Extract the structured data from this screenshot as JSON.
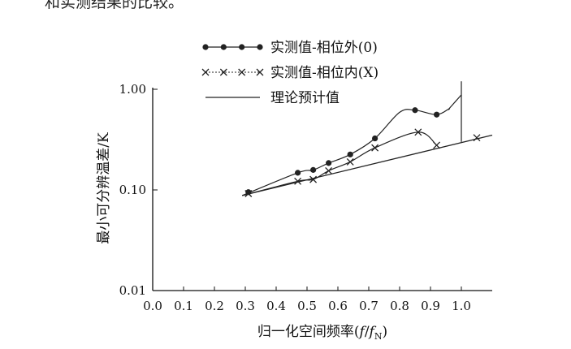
{
  "page": {
    "top_text": "和实测结果的比较。"
  },
  "chart_data": {
    "type": "line",
    "xlabel": "归一化空间频率(f/fN)",
    "xlabel_parts": {
      "main": "归一化空间频率(",
      "f1": "f",
      "slash": "/",
      "f2": "f",
      "sub": "N",
      "close": ")"
    },
    "ylabel": "最小可分辨温差/K",
    "x_scale": "linear",
    "y_scale": "log",
    "xlim": [
      0.0,
      1.1
    ],
    "ylim": [
      0.01,
      1.0
    ],
    "x_ticks": [
      "0.0",
      "0.1",
      "0.2",
      "0.3",
      "0.4",
      "0.5",
      "0.6",
      "0.7",
      "0.8",
      "0.9",
      "1.0"
    ],
    "y_ticks": [
      "0.01",
      "0.10",
      "1.00"
    ],
    "grid": false,
    "legend_position": "top",
    "series": [
      {
        "name": "实测值-相位外(0)",
        "marker": "dot",
        "points": [
          {
            "x": 0.31,
            "y": 0.095
          },
          {
            "x": 0.47,
            "y": 0.148
          },
          {
            "x": 0.52,
            "y": 0.158
          },
          {
            "x": 0.57,
            "y": 0.185
          },
          {
            "x": 0.64,
            "y": 0.225
          },
          {
            "x": 0.72,
            "y": 0.325
          },
          {
            "x": 0.85,
            "y": 0.62
          },
          {
            "x": 0.92,
            "y": 0.56
          }
        ],
        "curve": [
          {
            "x": 0.29,
            "y": 0.088
          },
          {
            "x": 0.47,
            "y": 0.148
          },
          {
            "x": 0.52,
            "y": 0.158
          },
          {
            "x": 0.57,
            "y": 0.185
          },
          {
            "x": 0.64,
            "y": 0.225
          },
          {
            "x": 0.72,
            "y": 0.325
          },
          {
            "x": 0.8,
            "y": 0.59
          },
          {
            "x": 0.85,
            "y": 0.62
          },
          {
            "x": 0.92,
            "y": 0.56
          },
          {
            "x": 0.96,
            "y": 0.64
          },
          {
            "x": 1.0,
            "y": 0.88
          },
          {
            "x": 1.0,
            "y": 1.2
          },
          {
            "x": 1.0,
            "y": 0.3
          }
        ]
      },
      {
        "name": "实测值-相位内(X)",
        "marker": "x",
        "points": [
          {
            "x": 0.31,
            "y": 0.092
          },
          {
            "x": 0.47,
            "y": 0.122
          },
          {
            "x": 0.52,
            "y": 0.127
          },
          {
            "x": 0.57,
            "y": 0.155
          },
          {
            "x": 0.64,
            "y": 0.19
          },
          {
            "x": 0.72,
            "y": 0.262
          },
          {
            "x": 0.86,
            "y": 0.375
          },
          {
            "x": 0.92,
            "y": 0.278
          },
          {
            "x": 1.05,
            "y": 0.33
          }
        ],
        "curve": [
          {
            "x": 0.29,
            "y": 0.088
          },
          {
            "x": 0.47,
            "y": 0.122
          },
          {
            "x": 0.52,
            "y": 0.127
          },
          {
            "x": 0.57,
            "y": 0.155
          },
          {
            "x": 0.64,
            "y": 0.19
          },
          {
            "x": 0.72,
            "y": 0.262
          },
          {
            "x": 0.86,
            "y": 0.375
          },
          {
            "x": 0.92,
            "y": 0.278
          }
        ]
      },
      {
        "name": "理论预计值",
        "marker": "none",
        "curve": [
          {
            "x": 0.29,
            "y": 0.088
          },
          {
            "x": 1.1,
            "y": 0.35
          }
        ]
      }
    ]
  }
}
